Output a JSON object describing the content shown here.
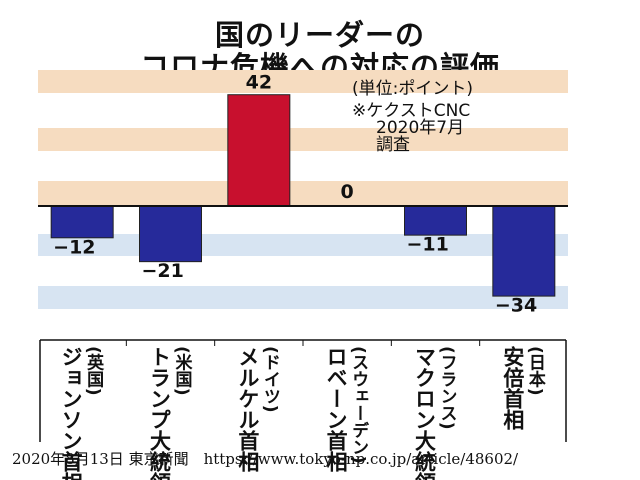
{
  "title": {
    "line1": "国のリーダーの",
    "line2": "コロナ危機への対応の評価"
  },
  "notes": {
    "unit": "(単位:ポイント)",
    "source_line1": "※ケクストCNC",
    "source_line2": "2020年7月",
    "source_line3": "調査"
  },
  "footer": {
    "text": "2020年8月13日 東京新聞　https://www.tokyo-np.co.jp/article/48602/"
  },
  "colors": {
    "positive_bar": "#c8102e",
    "negative_bar": "#262a9a",
    "band_above": "#f6dcc0",
    "band_below": "#d7e4f2"
  },
  "chart_data": {
    "type": "bar",
    "categories": [
      [
        "(英国)",
        "ジョンソン首相"
      ],
      [
        "(米国)",
        "トランプ大統領"
      ],
      [
        "(ドイツ)",
        "メルケル首相"
      ],
      [
        "(スウェーデン)",
        "ロベーン首相"
      ],
      [
        "(フランス)",
        "マクロン大統領"
      ],
      [
        "(日本)",
        "安倍首相"
      ]
    ],
    "values": [
      -12,
      -21,
      42,
      0,
      -11,
      -34
    ],
    "value_labels": [
      "−12",
      "−21",
      "42",
      "0",
      "−11",
      "−34"
    ],
    "ylabel": "",
    "xlabel": "",
    "ylim": [
      -40,
      50
    ],
    "grid": false,
    "legend": "none"
  }
}
